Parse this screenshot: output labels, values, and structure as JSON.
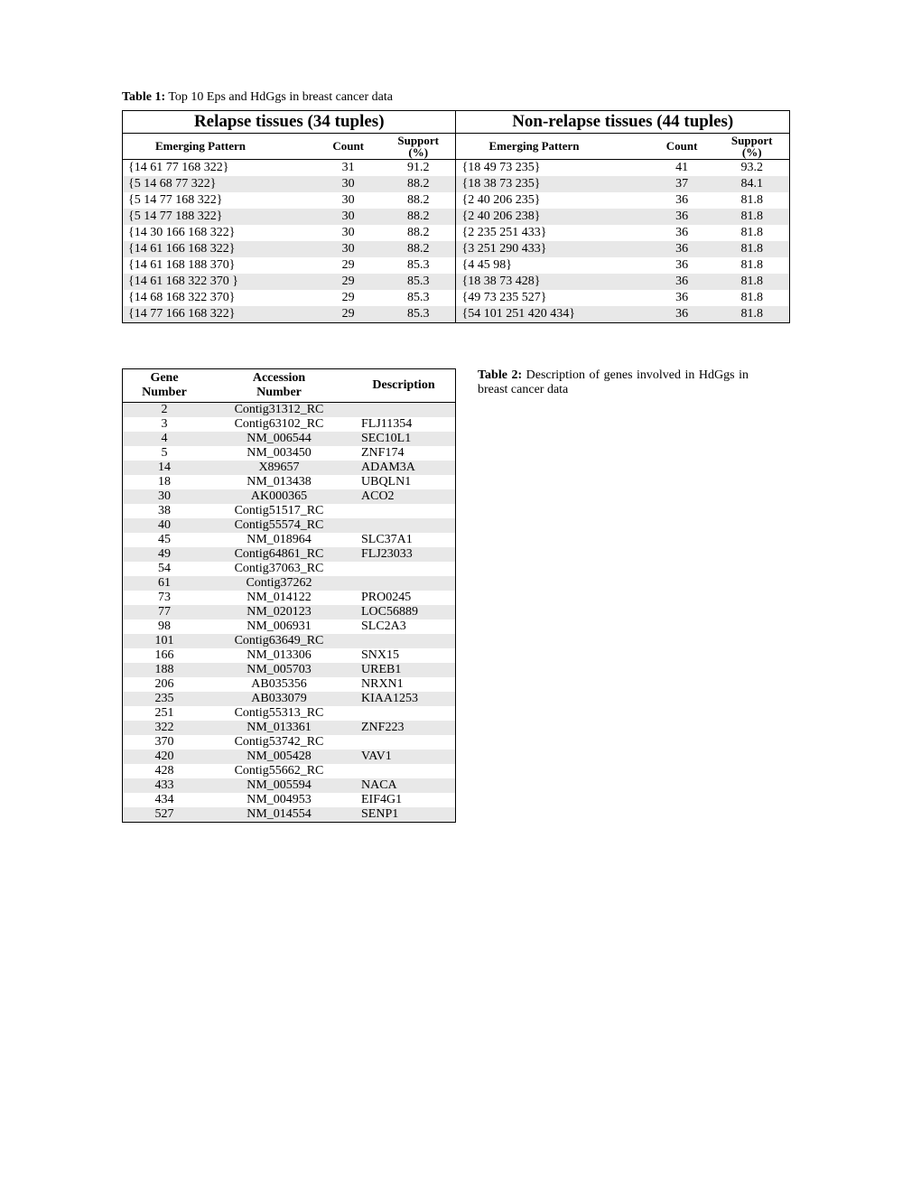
{
  "table1": {
    "caption_label": "Table 1:",
    "caption_text": " Top 10 Eps and HdGgs in breast cancer data",
    "left_title": "Relapse tissues (34 tuples)",
    "right_title": "Non-relapse tissues (44 tuples)",
    "sub_headers": {
      "ep": "Emerging Pattern",
      "count": "Count",
      "support1": "Support",
      "support2": "(%)"
    },
    "rows": [
      {
        "lep": "{14 61 77 168 322}",
        "lc": "31",
        "ls": "91.2",
        "rep": "{18 49 73 235}",
        "rc": "41",
        "rs": "93.2"
      },
      {
        "lep": "{5 14 68 77 322}",
        "lc": "30",
        "ls": "88.2",
        "rep": "{18 38 73 235}",
        "rc": "37",
        "rs": "84.1"
      },
      {
        "lep": "{5 14 77 168 322}",
        "lc": "30",
        "ls": "88.2",
        "rep": "{2 40 206 235}",
        "rc": "36",
        "rs": "81.8"
      },
      {
        "lep": "{5 14 77 188 322}",
        "lc": "30",
        "ls": "88.2",
        "rep": "{2 40 206 238}",
        "rc": "36",
        "rs": "81.8"
      },
      {
        "lep": "{14 30 166 168 322}",
        "lc": "30",
        "ls": "88.2",
        "rep": "{2 235 251 433}",
        "rc": "36",
        "rs": "81.8"
      },
      {
        "lep": "{14 61 166 168 322}",
        "lc": "30",
        "ls": "88.2",
        "rep": "{3 251 290 433}",
        "rc": "36",
        "rs": "81.8"
      },
      {
        "lep": "{14 61 168 188 370}",
        "lc": "29",
        "ls": "85.3",
        "rep": "{4 45 98}",
        "rc": "36",
        "rs": "81.8"
      },
      {
        "lep": "{14 61 168 322 370 }",
        "lc": "29",
        "ls": "85.3",
        "rep": "{18 38 73 428}",
        "rc": "36",
        "rs": "81.8"
      },
      {
        "lep": "{14 68 168 322 370}",
        "lc": "29",
        "ls": "85.3",
        "rep": "{49 73 235 527}",
        "rc": "36",
        "rs": "81.8"
      },
      {
        "lep": "{14 77 166 168 322}",
        "lc": "29",
        "ls": "85.3",
        "rep": "{54 101 251 420 434}",
        "rc": "36",
        "rs": "81.8"
      }
    ]
  },
  "table2": {
    "caption_label": "Table 2:",
    "caption_text": " Description of genes involved in HdGgs in breast cancer data",
    "headers": {
      "gene1": "Gene",
      "gene2": "Number",
      "acc1": "Accession",
      "acc2": "Number",
      "desc": "Description"
    },
    "rows": [
      {
        "g": "2",
        "a": "Contig31312_RC",
        "d": ""
      },
      {
        "g": "3",
        "a": "Contig63102_RC",
        "d": "FLJ11354"
      },
      {
        "g": "4",
        "a": "NM_006544",
        "d": "SEC10L1"
      },
      {
        "g": "5",
        "a": "NM_003450",
        "d": "ZNF174"
      },
      {
        "g": "14",
        "a": "X89657",
        "d": "ADAM3A"
      },
      {
        "g": "18",
        "a": "NM_013438",
        "d": "UBQLN1"
      },
      {
        "g": "30",
        "a": "AK000365",
        "d": "ACO2"
      },
      {
        "g": "38",
        "a": "Contig51517_RC",
        "d": ""
      },
      {
        "g": "40",
        "a": "Contig55574_RC",
        "d": ""
      },
      {
        "g": "45",
        "a": "NM_018964",
        "d": "SLC37A1"
      },
      {
        "g": "49",
        "a": "Contig64861_RC",
        "d": "FLJ23033"
      },
      {
        "g": "54",
        "a": "Contig37063_RC",
        "d": ""
      },
      {
        "g": "61",
        "a": "Contig37262",
        "d": ""
      },
      {
        "g": "73",
        "a": "NM_014122",
        "d": "PRO0245"
      },
      {
        "g": "77",
        "a": "NM_020123",
        "d": "LOC56889"
      },
      {
        "g": "98",
        "a": "NM_006931",
        "d": "SLC2A3"
      },
      {
        "g": "101",
        "a": "Contig63649_RC",
        "d": ""
      },
      {
        "g": "166",
        "a": "NM_013306",
        "d": "SNX15"
      },
      {
        "g": "188",
        "a": "NM_005703",
        "d": "UREB1"
      },
      {
        "g": "206",
        "a": "AB035356",
        "d": "NRXN1"
      },
      {
        "g": "235",
        "a": "AB033079",
        "d": "KIAA1253"
      },
      {
        "g": "251",
        "a": "Contig55313_RC",
        "d": ""
      },
      {
        "g": "322",
        "a": "NM_013361",
        "d": "ZNF223"
      },
      {
        "g": "370",
        "a": "Contig53742_RC",
        "d": ""
      },
      {
        "g": "420",
        "a": "NM_005428",
        "d": "VAV1"
      },
      {
        "g": "428",
        "a": "Contig55662_RC",
        "d": ""
      },
      {
        "g": "433",
        "a": "NM_005594",
        "d": "NACA"
      },
      {
        "g": "434",
        "a": "NM_004953",
        "d": "EIF4G1"
      },
      {
        "g": "527",
        "a": "NM_014554",
        "d": "SENP1"
      }
    ]
  }
}
